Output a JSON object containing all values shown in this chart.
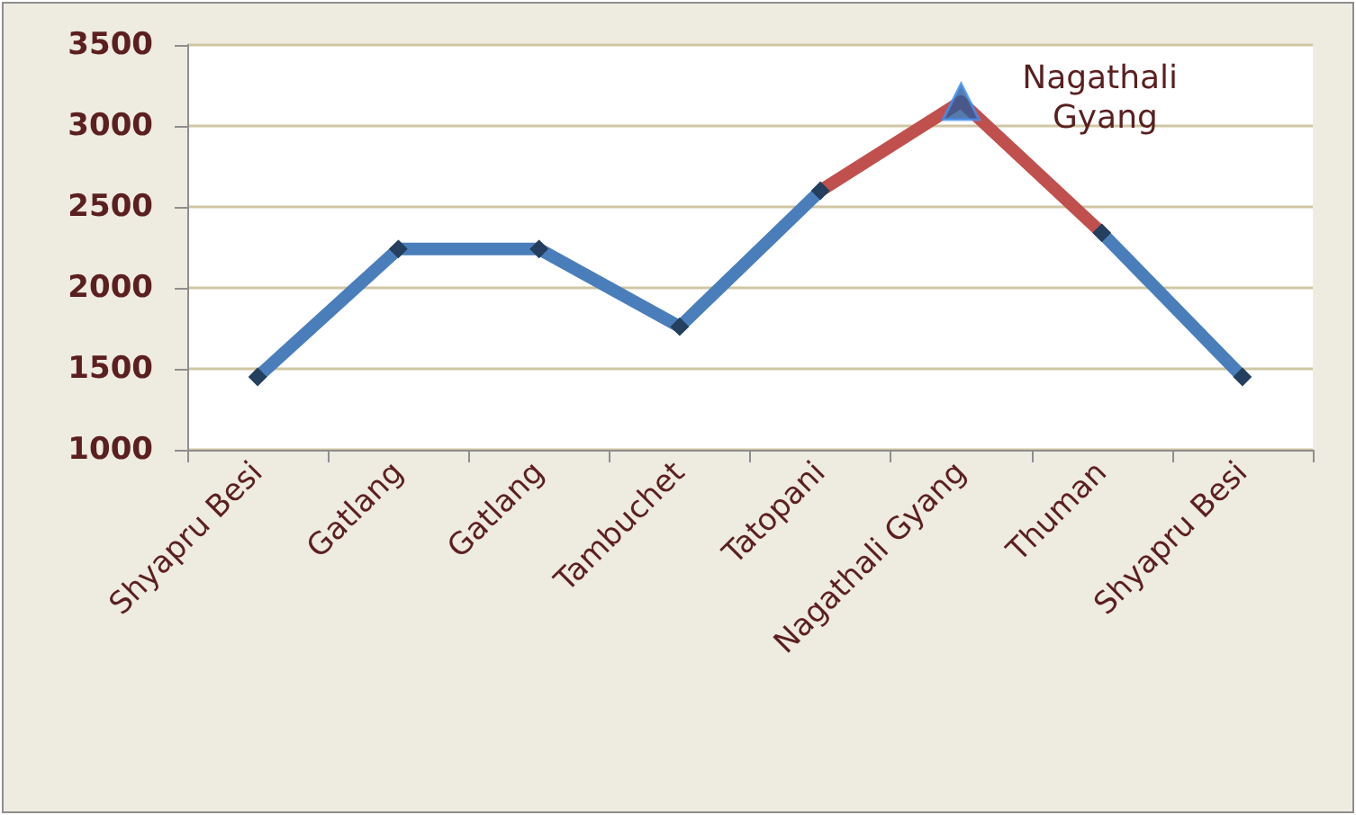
{
  "chart_data": {
    "type": "line",
    "categories": [
      "Shyapru Besi",
      "Gatlang",
      "Gatlang",
      "Tambuchet",
      "Tatopani",
      "Nagathali Gyang",
      "Thuman",
      "Shyapru Besi"
    ],
    "series": [
      {
        "color": "#c0504d",
        "values": [
          null,
          null,
          null,
          null,
          2600,
          3150,
          2340,
          null
        ],
        "marker": "none"
      },
      {
        "color": "#4a7ebb",
        "values": [
          1450,
          2240,
          2240,
          1760,
          2600,
          null,
          2340,
          1450
        ],
        "marker": "diamond"
      },
      {
        "type": "scatter",
        "color": "#2a5a98",
        "x": [
          "Nagathali Gyang"
        ],
        "values": [
          3150
        ],
        "marker": "triangle"
      }
    ],
    "ylim": [
      1000,
      3500
    ],
    "yticks": [
      1000,
      1500,
      2000,
      2500,
      3000,
      3500
    ],
    "grid": "y",
    "line_style": "solid",
    "annotations": [
      {
        "text": "Nagathali Gyang",
        "x": "Nagathali Gyang",
        "y": 3150
      }
    ]
  }
}
